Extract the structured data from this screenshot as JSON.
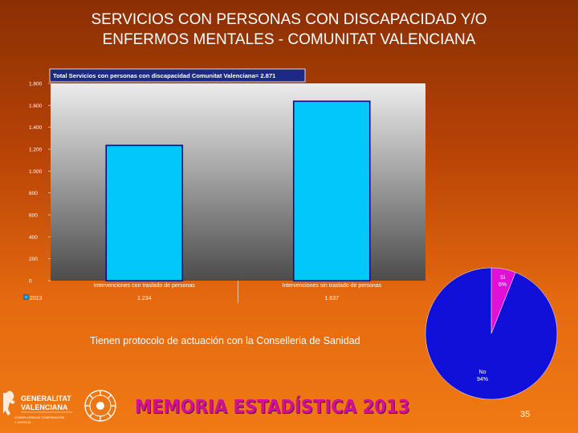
{
  "slide": {
    "title_line1": "SERVICIOS CON PERSONAS CON DISCAPACIDAD Y/O",
    "title_line2": "ENFERMOS MENTALES - COMUNITAT VALENCIANA",
    "caption": "Tienen protocolo de actuación con la Conselleria de Sanidad",
    "footer_title": "MEMORIA ESTADÍSTICA 2013",
    "page_number": "35",
    "logo_text": "GENERALITAT VALENCIANA",
    "logo_subtext": "CONSELLERIA DE GOBERNACIÓN Y JUSTICIA"
  },
  "colors": {
    "bar_fill": "#00c8f8",
    "bar_border": "#0a0a8a",
    "pie_no": "#1010d8",
    "pie_si": "#e010d8",
    "chart_bg_top": "#ececec",
    "chart_bg_bottom": "#4c4c4c"
  },
  "chart_data": [
    {
      "type": "bar",
      "title": "Total Servicios con personas con discapacidad Comunitat Valenciana= 2.871",
      "categories": [
        "Intervenciones con traslado de personas",
        "Intervenciones sin traslado de personas"
      ],
      "series": [
        {
          "name": "2013",
          "values": [
            1234,
            1637
          ],
          "labels": [
            "1.234",
            "1.637"
          ]
        }
      ],
      "ylim": [
        0,
        1800
      ],
      "yticks": [
        0,
        200,
        400,
        600,
        800,
        1000,
        1200,
        1400,
        1600,
        1800
      ],
      "ytick_labels": [
        "0",
        "200",
        "400",
        "600",
        "800",
        "1.000",
        "1.200",
        "1.400",
        "1.600",
        "1.800"
      ],
      "grid": false,
      "legend": "data-table-bottom",
      "xlabel": "",
      "ylabel": ""
    },
    {
      "type": "pie",
      "categories": [
        "Si",
        "No"
      ],
      "values": [
        6,
        94
      ],
      "labels": [
        "6%",
        "94%"
      ]
    }
  ]
}
